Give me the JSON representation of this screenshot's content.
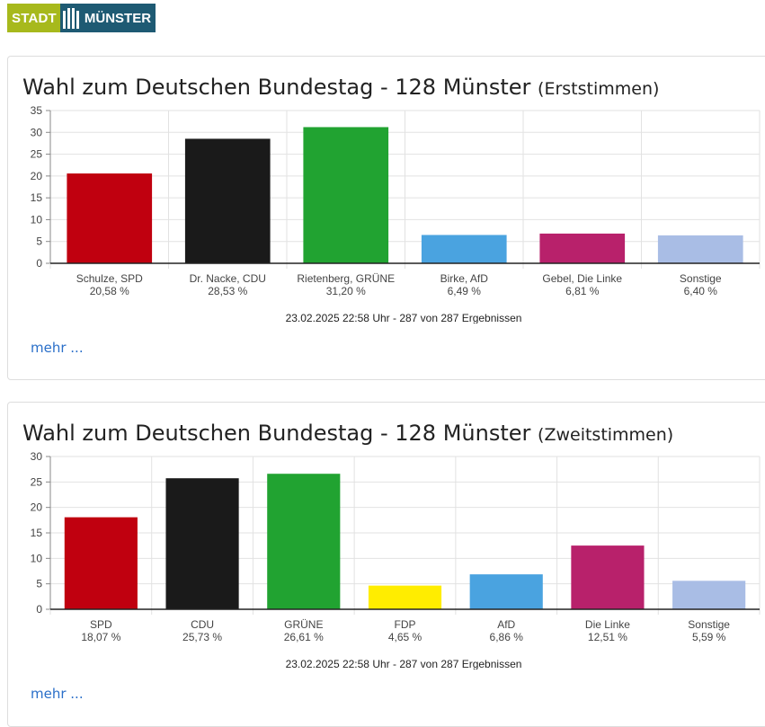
{
  "logo": {
    "stadt": "STADT",
    "muenster": "MÜNSTER"
  },
  "cards": [
    {
      "title": "Wahl zum Deutschen Bundestag - 128 Münster",
      "subtitle": "(Erststimmen)",
      "more_label": "mehr ...",
      "footer": "23.02.2025 22:58 Uhr - 287 von 287 Ergebnissen"
    },
    {
      "title": "Wahl zum Deutschen Bundestag - 128 Münster",
      "subtitle": "(Zweitstimmen)",
      "more_label": "mehr ...",
      "footer": "23.02.2025 22:58 Uhr - 287 von 287 Ergebnissen"
    }
  ],
  "chart_data": [
    {
      "type": "bar",
      "title": "Wahl zum Deutschen Bundestag - 128 Münster (Erststimmen)",
      "categories": [
        "Schulze, SPD",
        "Dr. Nacke, CDU",
        "Rietenberg, GRÜNE",
        "Birke, AfD",
        "Gebel, Die Linke",
        "Sonstige"
      ],
      "value_labels": [
        "20,58 %",
        "28,53 %",
        "31,20 %",
        "6,49 %",
        "6,81 %",
        "6,40 %"
      ],
      "values": [
        20.58,
        28.53,
        31.2,
        6.49,
        6.81,
        6.4
      ],
      "colors": [
        "#c0000f",
        "#1a1a1a",
        "#21a331",
        "#4aa3e0",
        "#b8216b",
        "#a9bde5"
      ],
      "ylim": [
        0,
        35
      ],
      "yticks": [
        0,
        5,
        10,
        15,
        20,
        25,
        30,
        35
      ],
      "grid": true,
      "footer": "23.02.2025 22:58 Uhr - 287 von 287 Ergebnissen"
    },
    {
      "type": "bar",
      "title": "Wahl zum Deutschen Bundestag - 128 Münster (Zweitstimmen)",
      "categories": [
        "SPD",
        "CDU",
        "GRÜNE",
        "FDP",
        "AfD",
        "Die Linke",
        "Sonstige"
      ],
      "value_labels": [
        "18,07 %",
        "25,73 %",
        "26,61 %",
        "4,65 %",
        "6,86 %",
        "12,51 %",
        "5,59 %"
      ],
      "values": [
        18.07,
        25.73,
        26.61,
        4.65,
        6.86,
        12.51,
        5.59
      ],
      "colors": [
        "#c0000f",
        "#1a1a1a",
        "#21a331",
        "#ffed00",
        "#4aa3e0",
        "#b8216b",
        "#a9bde5"
      ],
      "ylim": [
        0,
        30
      ],
      "yticks": [
        0,
        5,
        10,
        15,
        20,
        25,
        30
      ],
      "grid": true,
      "footer": "23.02.2025 22:58 Uhr - 287 von 287 Ergebnissen"
    }
  ]
}
